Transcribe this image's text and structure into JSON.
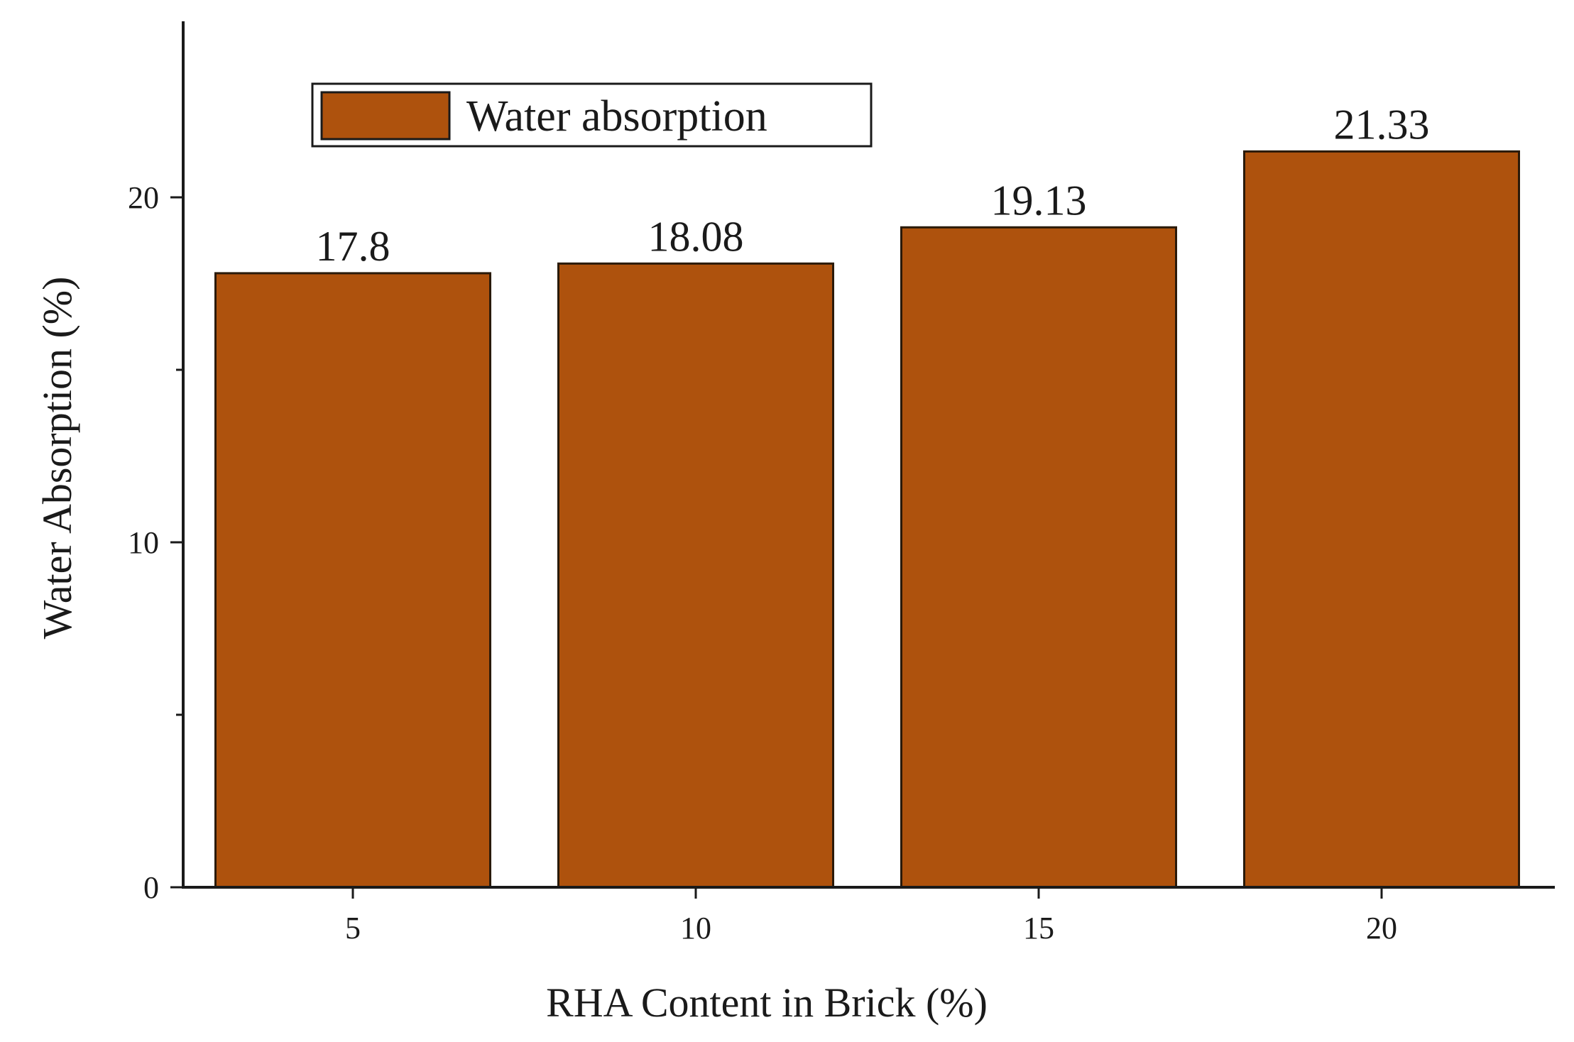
{
  "chart_data": {
    "type": "bar",
    "categories": [
      "5",
      "10",
      "15",
      "20"
    ],
    "series": [
      {
        "name": "Water absorption",
        "values": [
          17.8,
          18.08,
          19.13,
          21.33
        ],
        "labels": [
          "17.8",
          "18.08",
          "19.13",
          "21.33"
        ],
        "color": "#ae520d"
      }
    ],
    "title": "",
    "xlabel": "RHA Content in Brick (%)",
    "ylabel": "Water Absorption (%)",
    "ylim": [
      0,
      25
    ],
    "yticks": [
      0,
      10,
      20
    ],
    "yticks_minor": [
      5,
      15
    ],
    "grid": false,
    "legend": {
      "position": "top-left",
      "entries": [
        "Water absorption"
      ]
    }
  }
}
